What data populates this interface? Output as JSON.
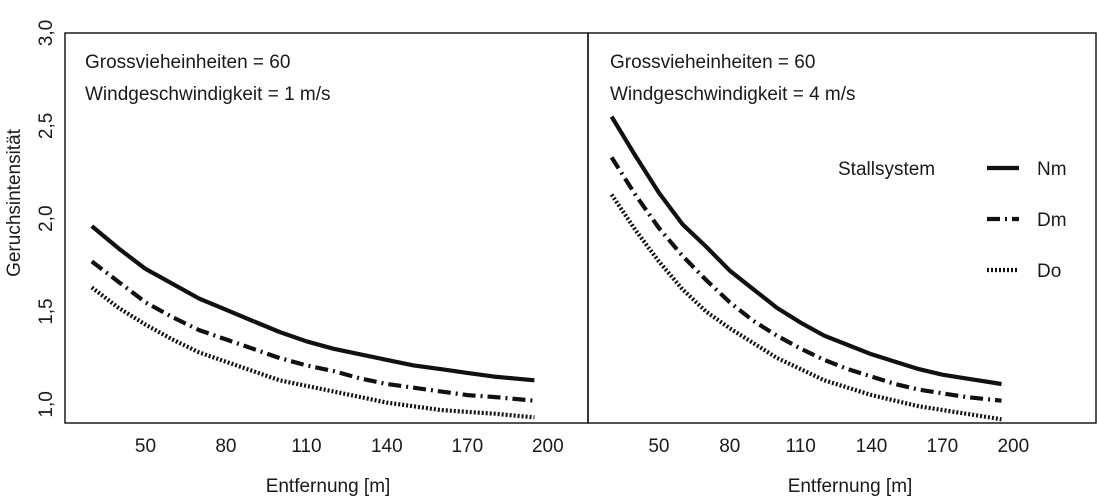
{
  "chart_data": {
    "type": "line",
    "ylabel": "Geruchsintensität",
    "ylim": [
      0.9,
      3.0
    ],
    "y_ticks": [
      "1,0",
      "1,5",
      "2,0",
      "2,5",
      "3,0"
    ],
    "xlabel": "Entfernung [m]",
    "x_ticks": [
      50,
      80,
      110,
      140,
      170,
      200
    ],
    "legend": {
      "title": "Stallsystem",
      "placement": "right",
      "items": [
        {
          "name": "Nm",
          "style": "solid"
        },
        {
          "name": "Dm",
          "style": "dash-dot"
        },
        {
          "name": "Do",
          "style": "dotted"
        }
      ]
    },
    "panels": [
      {
        "annotations": [
          "Grossvieheinheiten = 60",
          "Windgeschwindigkeit = 1 m/s"
        ],
        "xlim": [
          20,
          215
        ],
        "x": [
          30,
          40,
          50,
          60,
          70,
          80,
          90,
          100,
          110,
          120,
          130,
          140,
          150,
          160,
          170,
          180,
          195
        ],
        "series": [
          {
            "name": "Nm",
            "style": "solid",
            "values": [
              1.96,
              1.84,
              1.73,
              1.65,
              1.57,
              1.51,
              1.45,
              1.39,
              1.34,
              1.3,
              1.27,
              1.24,
              1.21,
              1.19,
              1.17,
              1.15,
              1.13
            ]
          },
          {
            "name": "Dm",
            "style": "dash-dot",
            "values": [
              1.77,
              1.66,
              1.55,
              1.47,
              1.4,
              1.35,
              1.3,
              1.25,
              1.21,
              1.18,
              1.14,
              1.11,
              1.09,
              1.07,
              1.05,
              1.04,
              1.02
            ]
          },
          {
            "name": "Do",
            "style": "dotted",
            "values": [
              1.63,
              1.52,
              1.43,
              1.35,
              1.28,
              1.23,
              1.18,
              1.13,
              1.1,
              1.07,
              1.04,
              1.01,
              0.99,
              0.97,
              0.96,
              0.95,
              0.93
            ]
          }
        ]
      },
      {
        "annotations": [
          "Grossvieheinheiten = 60",
          "Windgeschwindigkeit = 4 m/s"
        ],
        "xlim": [
          20,
          235
        ],
        "x": [
          30,
          40,
          50,
          60,
          70,
          80,
          90,
          100,
          110,
          120,
          130,
          140,
          150,
          160,
          170,
          180,
          195
        ],
        "series": [
          {
            "name": "Nm",
            "style": "solid",
            "values": [
              2.55,
              2.34,
              2.14,
              1.97,
              1.85,
              1.72,
              1.62,
              1.52,
              1.44,
              1.37,
              1.32,
              1.27,
              1.23,
              1.19,
              1.16,
              1.14,
              1.11
            ]
          },
          {
            "name": "Dm",
            "style": "dash-dot",
            "values": [
              2.33,
              2.13,
              1.95,
              1.8,
              1.67,
              1.55,
              1.45,
              1.37,
              1.3,
              1.24,
              1.19,
              1.15,
              1.11,
              1.08,
              1.06,
              1.04,
              1.02
            ]
          },
          {
            "name": "Do",
            "style": "dotted",
            "values": [
              2.13,
              1.94,
              1.77,
              1.62,
              1.5,
              1.41,
              1.33,
              1.25,
              1.19,
              1.13,
              1.09,
              1.05,
              1.02,
              0.99,
              0.97,
              0.95,
              0.92
            ]
          }
        ]
      }
    ]
  }
}
